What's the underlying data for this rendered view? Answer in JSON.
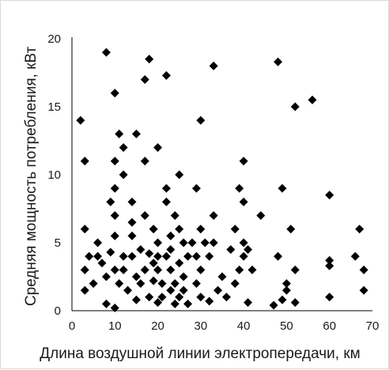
{
  "chart_data": {
    "type": "scatter",
    "title": "",
    "xlabel": "Длина воздушной линии электропередачи, км",
    "ylabel": "Средняя мощность потребления, кВт",
    "xlim": [
      0,
      70
    ],
    "ylim": [
      0,
      20
    ],
    "xticks": [
      "0",
      "10",
      "20",
      "30",
      "40",
      "50",
      "60",
      "70"
    ],
    "yticks": [
      "0",
      "5",
      "10",
      "15",
      "20"
    ],
    "grid": false,
    "legend": "none",
    "marker": "diamond",
    "marker_color": "#000000",
    "points": [
      [
        2,
        14
      ],
      [
        3,
        11
      ],
      [
        3,
        6
      ],
      [
        3,
        3
      ],
      [
        3,
        1.5
      ],
      [
        4,
        4
      ],
      [
        5,
        2
      ],
      [
        6,
        5
      ],
      [
        6,
        4
      ],
      [
        7,
        3.5
      ],
      [
        8,
        19
      ],
      [
        8,
        2.5
      ],
      [
        8,
        0.5
      ],
      [
        9,
        8
      ],
      [
        9,
        4.3
      ],
      [
        10,
        16
      ],
      [
        10,
        11
      ],
      [
        10,
        9
      ],
      [
        10,
        7
      ],
      [
        10,
        5.5
      ],
      [
        10,
        3
      ],
      [
        10,
        0.2
      ],
      [
        11,
        13
      ],
      [
        11,
        2
      ],
      [
        12,
        12
      ],
      [
        12,
        10
      ],
      [
        12,
        4
      ],
      [
        12,
        3
      ],
      [
        13,
        1.5
      ],
      [
        14,
        8
      ],
      [
        14,
        6.5
      ],
      [
        14,
        5.5
      ],
      [
        14,
        4
      ],
      [
        15,
        13
      ],
      [
        15,
        2.5
      ],
      [
        15,
        0.8
      ],
      [
        16,
        4.5
      ],
      [
        16,
        2
      ],
      [
        17,
        17
      ],
      [
        17,
        11
      ],
      [
        17,
        7
      ],
      [
        17,
        3
      ],
      [
        18,
        18.5
      ],
      [
        18,
        4.2
      ],
      [
        18,
        1
      ],
      [
        19,
        6
      ],
      [
        19,
        3.5
      ],
      [
        19,
        2.2
      ],
      [
        20,
        12
      ],
      [
        20,
        5
      ],
      [
        20,
        4
      ],
      [
        20,
        3
      ],
      [
        20,
        0.6
      ],
      [
        21,
        2
      ],
      [
        21,
        1
      ],
      [
        22,
        17.3
      ],
      [
        22,
        9
      ],
      [
        22,
        8
      ],
      [
        22,
        4
      ],
      [
        23,
        5.5
      ],
      [
        23,
        4.5
      ],
      [
        23,
        3
      ],
      [
        23,
        1.5
      ],
      [
        24,
        7
      ],
      [
        24,
        2
      ],
      [
        24,
        0.5
      ],
      [
        25,
        10
      ],
      [
        25,
        6
      ],
      [
        25,
        3.5
      ],
      [
        25,
        1
      ],
      [
        26,
        5
      ],
      [
        26,
        2.5
      ],
      [
        26,
        1.5
      ],
      [
        27,
        4
      ],
      [
        27,
        0.5
      ],
      [
        28,
        5
      ],
      [
        29,
        9
      ],
      [
        29,
        4
      ],
      [
        29,
        2
      ],
      [
        30,
        14
      ],
      [
        30,
        6
      ],
      [
        30,
        3
      ],
      [
        30,
        1
      ],
      [
        31,
        5
      ],
      [
        32,
        0.7
      ],
      [
        32,
        4
      ],
      [
        33,
        18
      ],
      [
        33,
        7
      ],
      [
        33,
        5
      ],
      [
        34,
        1.5
      ],
      [
        35,
        2.5
      ],
      [
        36,
        1
      ],
      [
        37,
        4.5
      ],
      [
        38,
        6
      ],
      [
        38,
        2
      ],
      [
        39,
        9
      ],
      [
        39,
        3
      ],
      [
        40,
        11
      ],
      [
        40,
        8
      ],
      [
        40,
        5
      ],
      [
        40,
        4
      ],
      [
        41,
        0.6
      ],
      [
        41,
        4.5
      ],
      [
        42,
        3
      ],
      [
        44,
        7
      ],
      [
        47,
        0.4
      ],
      [
        48,
        18.3
      ],
      [
        48,
        4
      ],
      [
        49,
        9
      ],
      [
        49,
        0.8
      ],
      [
        50,
        2
      ],
      [
        50,
        1.5
      ],
      [
        51,
        6
      ],
      [
        52,
        15
      ],
      [
        52,
        3
      ],
      [
        52,
        0.6
      ],
      [
        56,
        15.5
      ],
      [
        60,
        8.5
      ],
      [
        60,
        3.7
      ],
      [
        60,
        3.3
      ],
      [
        60,
        1
      ],
      [
        66,
        4
      ],
      [
        67,
        6
      ],
      [
        68,
        3
      ],
      [
        68,
        1.5
      ]
    ]
  }
}
